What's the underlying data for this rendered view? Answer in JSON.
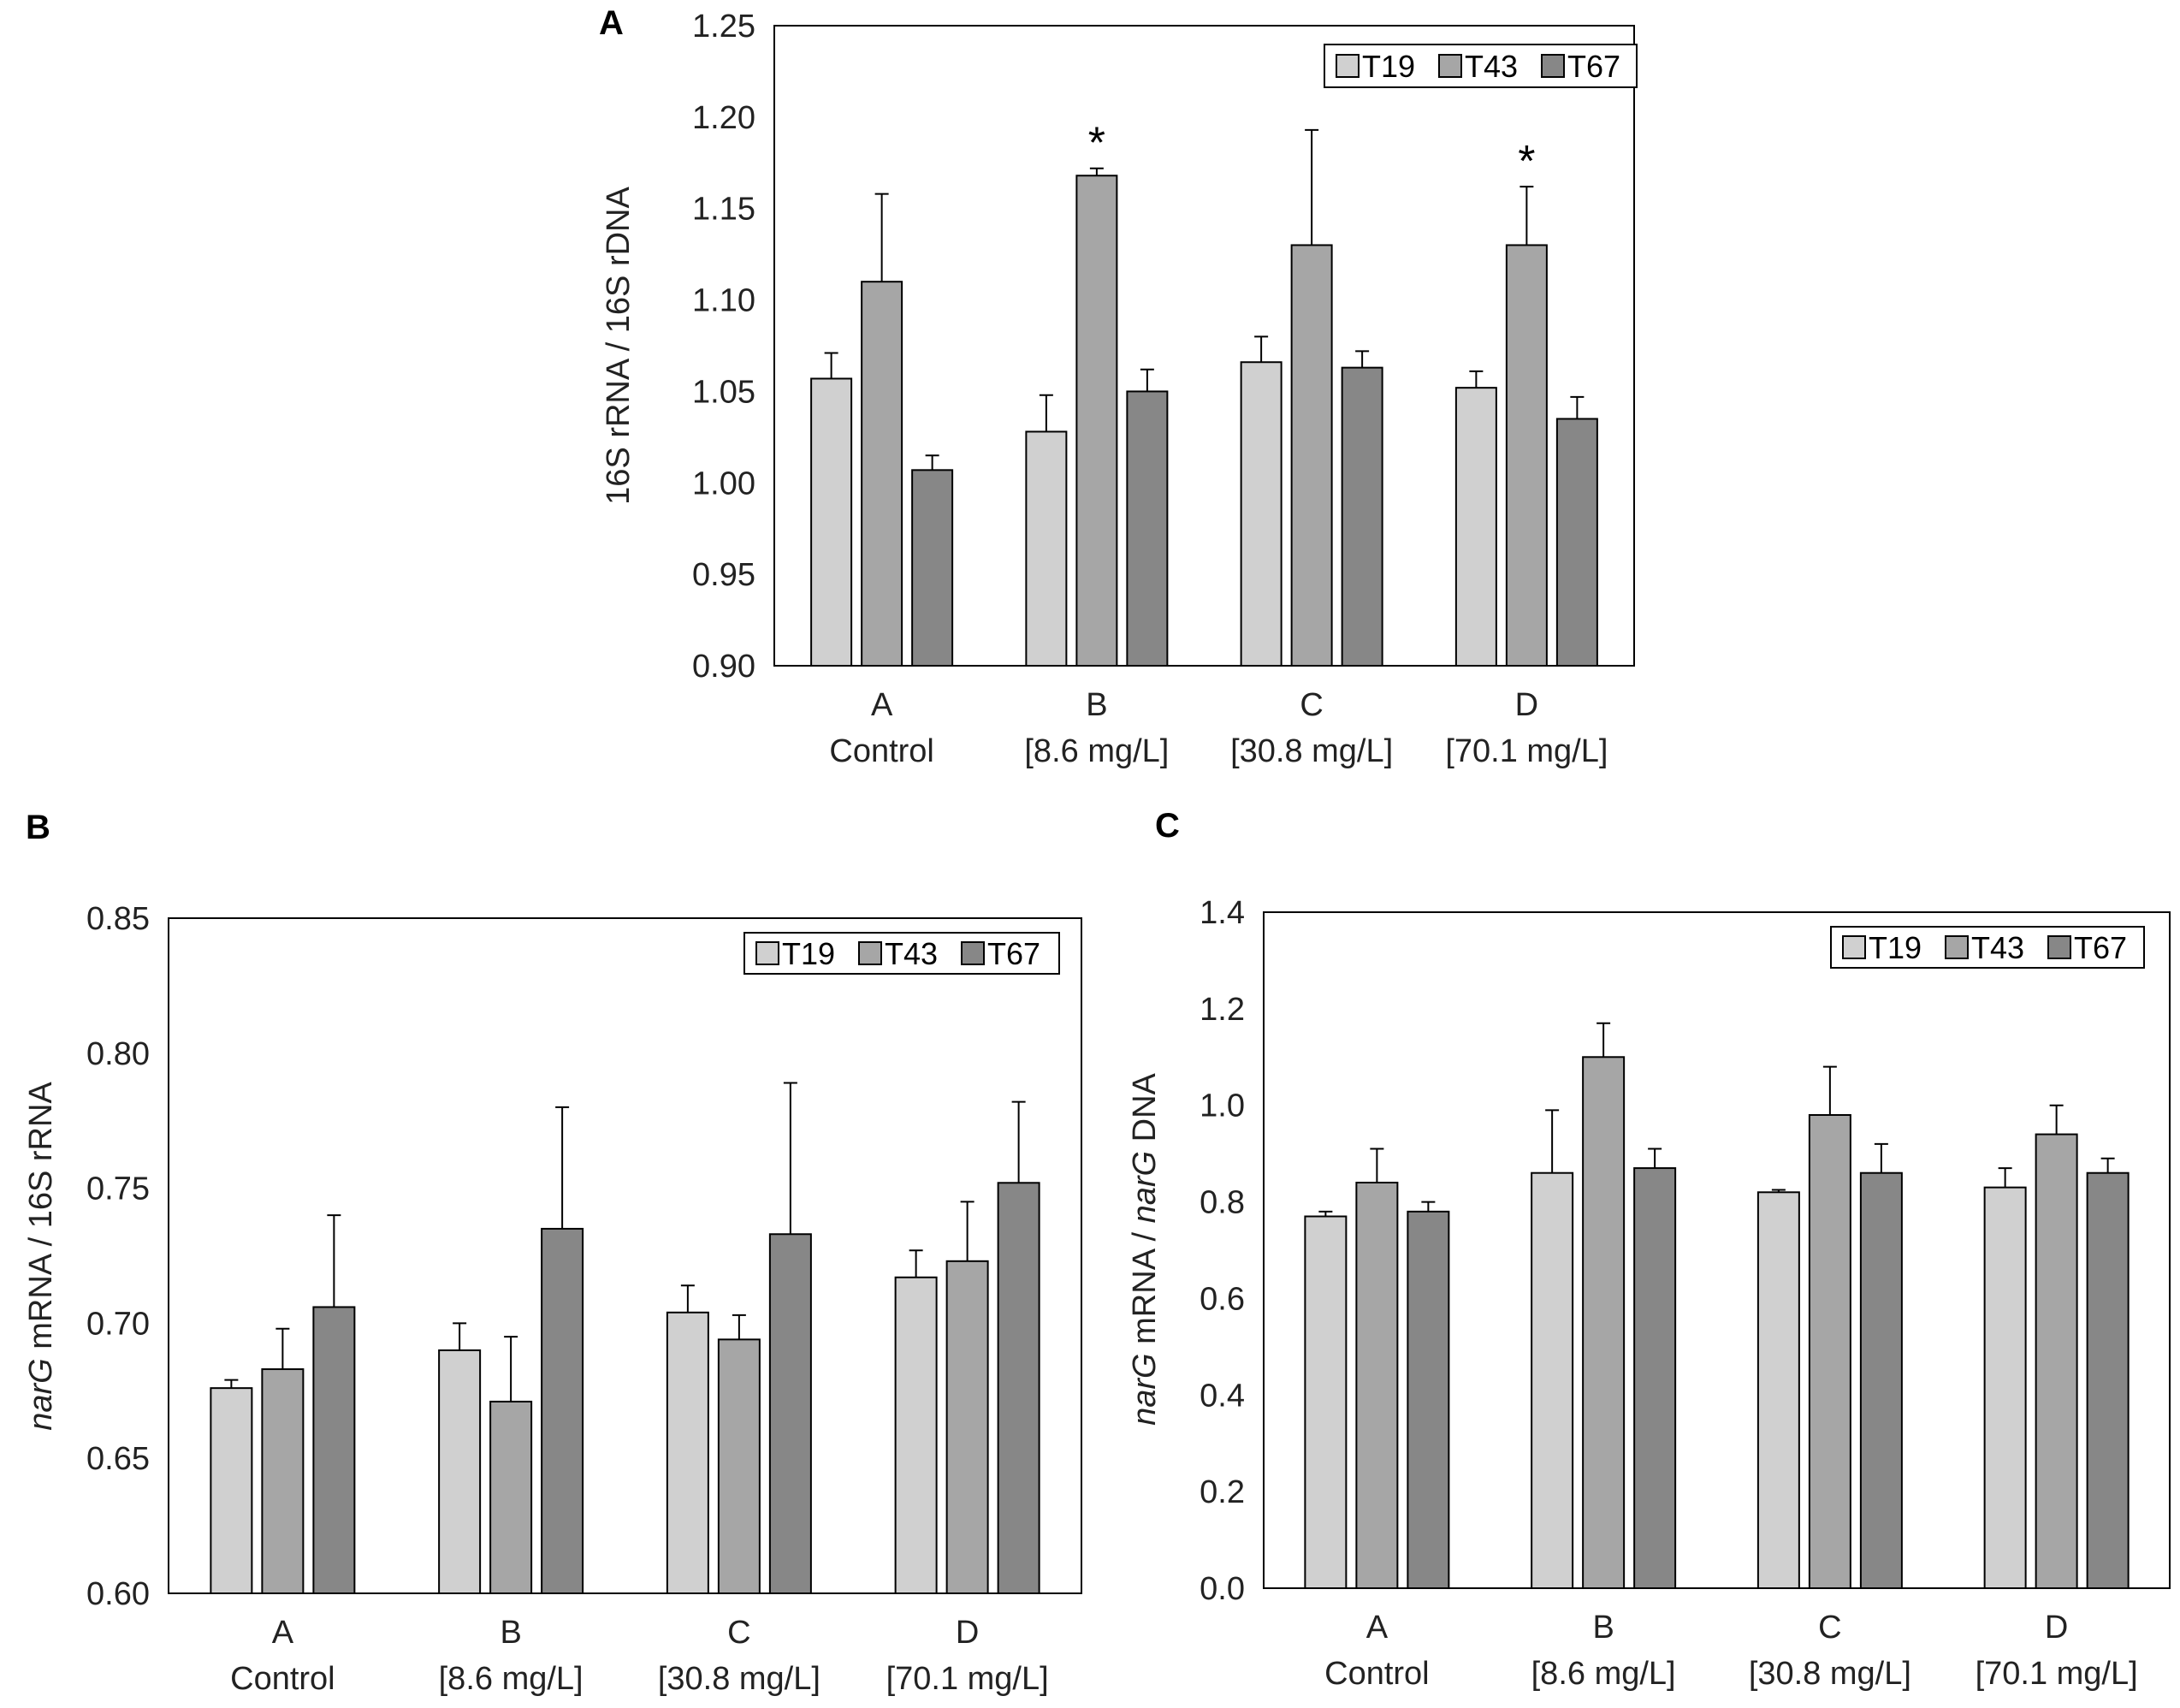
{
  "chart_data": [
    {
      "panel": "A",
      "type": "bar",
      "title": "",
      "ylabel": "16S rRNA / 16S rDNA",
      "xlabel": "",
      "ylim": [
        0.9,
        1.25
      ],
      "yticks": [
        "0.90",
        "0.95",
        "1.00",
        "1.05",
        "1.10",
        "1.15",
        "1.20",
        "1.25"
      ],
      "categories": [
        [
          "A",
          "Control"
        ],
        [
          "B",
          "[8.6 mg/L]"
        ],
        [
          "C",
          "[30.8 mg/L]"
        ],
        [
          "D",
          "[70.1 mg/L]"
        ]
      ],
      "series": [
        {
          "name": "T19",
          "color": "#d0d0d0",
          "values": [
            1.057,
            1.028,
            1.066,
            1.052
          ],
          "errors": [
            0.014,
            0.02,
            0.014,
            0.009
          ]
        },
        {
          "name": "T43",
          "color": "#a6a6a6",
          "values": [
            1.11,
            1.168,
            1.13,
            1.13
          ],
          "errors": [
            0.048,
            0.004,
            0.063,
            0.032
          ]
        },
        {
          "name": "T67",
          "color": "#878787",
          "values": [
            1.007,
            1.05,
            1.063,
            1.035
          ],
          "errors": [
            0.008,
            0.012,
            0.009,
            0.012
          ]
        }
      ],
      "annotations": [
        {
          "text": "*",
          "category": 1,
          "series": 1
        },
        {
          "text": "*",
          "category": 3,
          "series": 1
        }
      ],
      "legend": "top-right"
    },
    {
      "panel": "B",
      "type": "bar",
      "title": "",
      "ylabel_italic": "narG",
      "ylabel": " mRNA / 16S rRNA",
      "xlabel": "",
      "ylim": [
        0.6,
        0.85
      ],
      "yticks": [
        "0.60",
        "0.65",
        "0.70",
        "0.75",
        "0.80",
        "0.85"
      ],
      "categories": [
        [
          "A",
          "Control"
        ],
        [
          "B",
          "[8.6 mg/L]"
        ],
        [
          "C",
          "[30.8 mg/L]"
        ],
        [
          "D",
          "[70.1 mg/L]"
        ]
      ],
      "series": [
        {
          "name": "T19",
          "color": "#d0d0d0",
          "values": [
            0.676,
            0.69,
            0.704,
            0.717
          ],
          "errors": [
            0.003,
            0.01,
            0.01,
            0.01
          ]
        },
        {
          "name": "T43",
          "color": "#a6a6a6",
          "values": [
            0.683,
            0.671,
            0.694,
            0.723
          ],
          "errors": [
            0.015,
            0.024,
            0.009,
            0.022
          ]
        },
        {
          "name": "T67",
          "color": "#878787",
          "values": [
            0.706,
            0.735,
            0.733,
            0.752
          ],
          "errors": [
            0.034,
            0.045,
            0.056,
            0.03
          ]
        }
      ],
      "annotations": [],
      "legend": "top-right"
    },
    {
      "panel": "C",
      "type": "bar",
      "title": "",
      "ylabel_italic": "narG",
      "ylabel": " mRNA / ",
      "ylabel_italic2": "narG",
      "ylabel_tail": " DNA",
      "xlabel": "",
      "ylim": [
        0.0,
        1.4
      ],
      "yticks": [
        "0.0",
        "0.2",
        "0.4",
        "0.6",
        "0.8",
        "1.0",
        "1.2",
        "1.4"
      ],
      "categories": [
        [
          "A",
          "Control"
        ],
        [
          "B",
          "[8.6 mg/L]"
        ],
        [
          "C",
          "[30.8 mg/L]"
        ],
        [
          "D",
          "[70.1 mg/L]"
        ]
      ],
      "series": [
        {
          "name": "T19",
          "color": "#d0d0d0",
          "values": [
            0.77,
            0.86,
            0.82,
            0.83
          ],
          "errors": [
            0.01,
            0.13,
            0.005,
            0.04
          ]
        },
        {
          "name": "T43",
          "color": "#a6a6a6",
          "values": [
            0.84,
            1.1,
            0.98,
            0.94
          ],
          "errors": [
            0.07,
            0.07,
            0.1,
            0.06
          ]
        },
        {
          "name": "T67",
          "color": "#878787",
          "values": [
            0.78,
            0.87,
            0.86,
            0.86
          ],
          "errors": [
            0.02,
            0.04,
            0.06,
            0.03
          ]
        }
      ],
      "annotations": [],
      "legend": "top-right"
    }
  ]
}
